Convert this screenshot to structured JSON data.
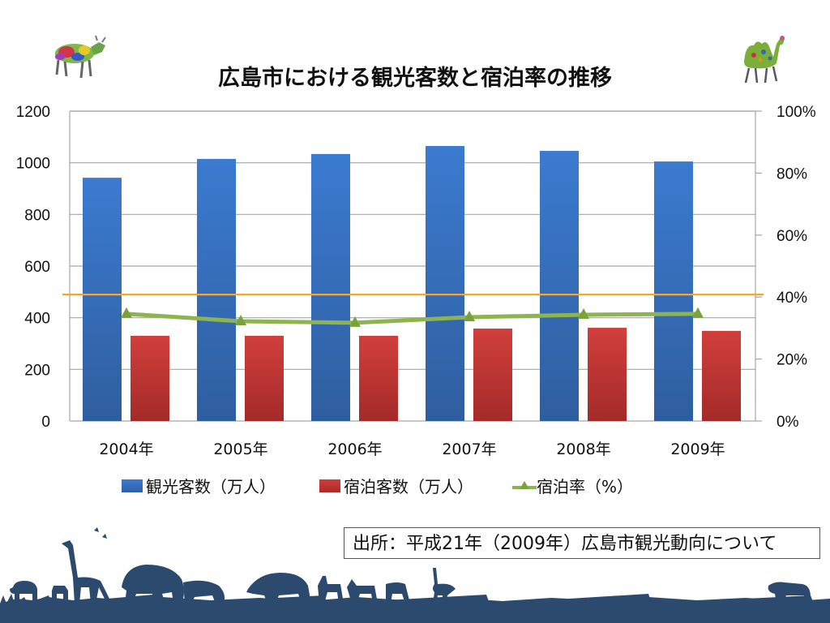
{
  "title": "広島市における観光客数と宿泊率の推移",
  "source_note": "出所：平成21年（2009年）広島市観光動向について",
  "colors": {
    "visitors": "#3a74c4",
    "stays": "#cc3a36",
    "rate": "#8db44f",
    "reference_line": "#f5a631",
    "grid": "#a6a6a6",
    "silhouette": "#2c4a6e"
  },
  "decorations": {
    "top_left": "colorful-cow-icon",
    "top_right": "green-camel-icon",
    "bottom": "safari-animal-silhouettes"
  },
  "chart_data": {
    "type": "bar",
    "title": "広島市における観光客数と宿泊率の推移",
    "categories": [
      "2004年",
      "2005年",
      "2006年",
      "2007年",
      "2008年",
      "2009年"
    ],
    "series": [
      {
        "name": "観光客数（万人）",
        "type": "bar",
        "axis": "left",
        "values": [
          942,
          1015,
          1034,
          1065,
          1046,
          1005
        ]
      },
      {
        "name": "宿泊客数（万人）",
        "type": "bar",
        "axis": "left",
        "values": [
          330,
          330,
          330,
          358,
          361,
          349
        ]
      },
      {
        "name": "宿泊率（%）",
        "type": "line",
        "axis": "right",
        "marker": "triangle",
        "values": [
          34.6,
          32.2,
          31.7,
          33.5,
          34.3,
          34.6
        ]
      }
    ],
    "reference_line": {
      "axis": "right",
      "value": 40.8
    },
    "y_left": {
      "ylim": [
        0,
        1200
      ],
      "ticks": [
        "0",
        "200",
        "400",
        "600",
        "800",
        "1000",
        "1200"
      ]
    },
    "y_right": {
      "ylim": [
        0,
        100
      ],
      "ticks": [
        "0%",
        "20%",
        "40%",
        "60%",
        "80%",
        "100%"
      ]
    },
    "xlabel": "",
    "ylabel": "",
    "grid": true,
    "legend": {
      "position": "bottom",
      "items": [
        "観光客数（万人）",
        "宿泊客数（万人）",
        "宿泊率（%）"
      ]
    }
  }
}
